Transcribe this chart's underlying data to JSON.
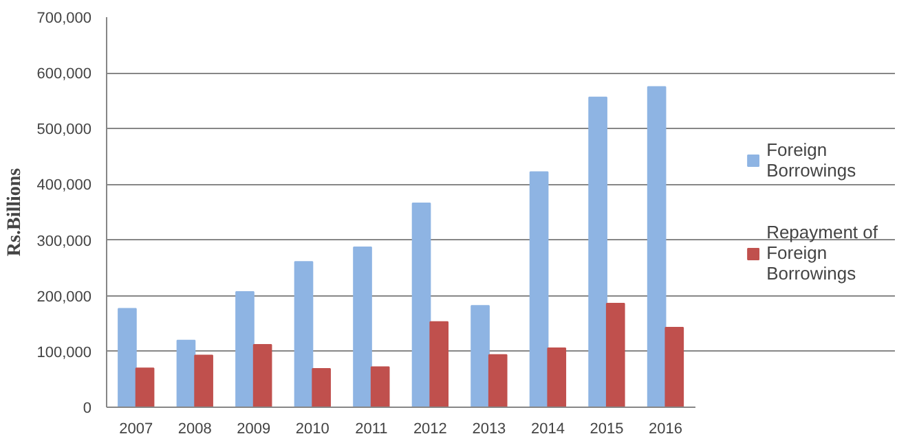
{
  "chart_data": {
    "type": "bar",
    "ylabel": "Rs.Billions",
    "categories": [
      "2007",
      "2008",
      "2009",
      "2010",
      "2011",
      "2012",
      "2013",
      "2014",
      "2015",
      "2016"
    ],
    "series": [
      {
        "name": "Foreign Borrowings",
        "color": "#8eb4e3",
        "values": [
          177000,
          120000,
          207000,
          261000,
          287000,
          366000,
          182000,
          422000,
          556000,
          575000
        ]
      },
      {
        "name": "Repayment of Foreign Borrowings",
        "color": "#c0504d",
        "values": [
          70000,
          93000,
          112000,
          69000,
          72000,
          153000,
          94000,
          106000,
          186000,
          143000
        ]
      }
    ],
    "ylim": [
      0,
      700000
    ],
    "yticks": [
      {
        "value": 0,
        "label": "0"
      },
      {
        "value": 100000,
        "label": "100,000"
      },
      {
        "value": 200000,
        "label": "200,000"
      },
      {
        "value": 300000,
        "label": "300,000"
      },
      {
        "value": 400000,
        "label": "400,000"
      },
      {
        "value": 500000,
        "label": "500,000"
      },
      {
        "value": 600000,
        "label": "600,000"
      },
      {
        "value": 700000,
        "label": "700,000"
      }
    ],
    "grid": "y",
    "legend": "right"
  }
}
